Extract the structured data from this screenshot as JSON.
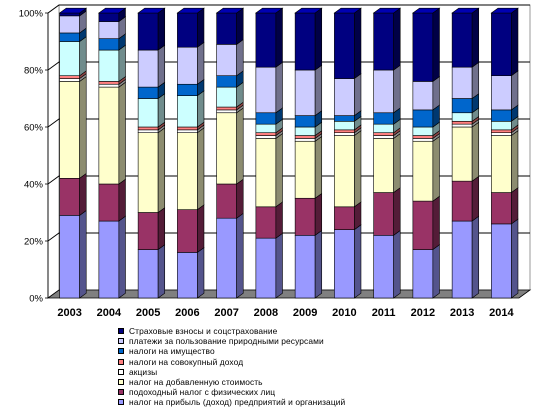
{
  "chart_data": {
    "type": "bar",
    "stacked": true,
    "three_d": true,
    "categories": [
      "2003",
      "2004",
      "2005",
      "2006",
      "2007",
      "2008",
      "2009",
      "2010",
      "2011",
      "2012",
      "2013",
      "2014"
    ],
    "yticks": [
      "0%",
      "20%",
      "40%",
      "60%",
      "80%",
      "100%"
    ],
    "ylim": [
      0,
      100
    ],
    "grid": true,
    "legend_position": "bottom",
    "series": [
      {
        "name": "налог на прибыль (доход) предприятий и организаций",
        "color": "#9999ff",
        "values": [
          29,
          27,
          17,
          16,
          28,
          21,
          22,
          24,
          22,
          17,
          27,
          26
        ]
      },
      {
        "name": "подоходный налог с физических лиц",
        "color": "#993366",
        "values": [
          13,
          13,
          13,
          15,
          12,
          11,
          13,
          8,
          15,
          17,
          14,
          11
        ]
      },
      {
        "name": "налог на добавленную стоимость",
        "color": "#ffffcc",
        "values": [
          34,
          34,
          28,
          27,
          25,
          24,
          20,
          25,
          19,
          21,
          19,
          20
        ]
      },
      {
        "name": "акцизы",
        "color": "#ffffff",
        "values": [
          1,
          1,
          1,
          1,
          1,
          1,
          1,
          1,
          1,
          1,
          1,
          1
        ]
      },
      {
        "name": "налоги на совокупный доход",
        "color": "#ff8080",
        "values": [
          1,
          1,
          1,
          1,
          1,
          1,
          1,
          1,
          1,
          1,
          1,
          1
        ]
      },
      {
        "name": "",
        "color": "#ccffff",
        "values": [
          12,
          11,
          10,
          11,
          7,
          3,
          3,
          3,
          3,
          3,
          3,
          3
        ]
      },
      {
        "name": "налоги на имущество",
        "color": "#0066cc",
        "values": [
          3,
          4,
          4,
          4,
          4,
          4,
          4,
          2,
          4,
          6,
          5,
          4
        ]
      },
      {
        "name": "платежи за пользование природными ресурсами",
        "color": "#ccccff",
        "values": [
          6,
          6,
          13,
          13,
          11,
          16,
          16,
          13,
          15,
          10,
          11,
          12
        ]
      },
      {
        "name": "Страховые взносы и соцстрахование",
        "color": "#000080",
        "values": [
          1,
          3,
          13,
          12,
          11,
          19,
          20,
          23,
          20,
          24,
          19,
          22
        ]
      }
    ],
    "legend_order": [
      8,
      7,
      6,
      4,
      3,
      2,
      1,
      0
    ]
  }
}
